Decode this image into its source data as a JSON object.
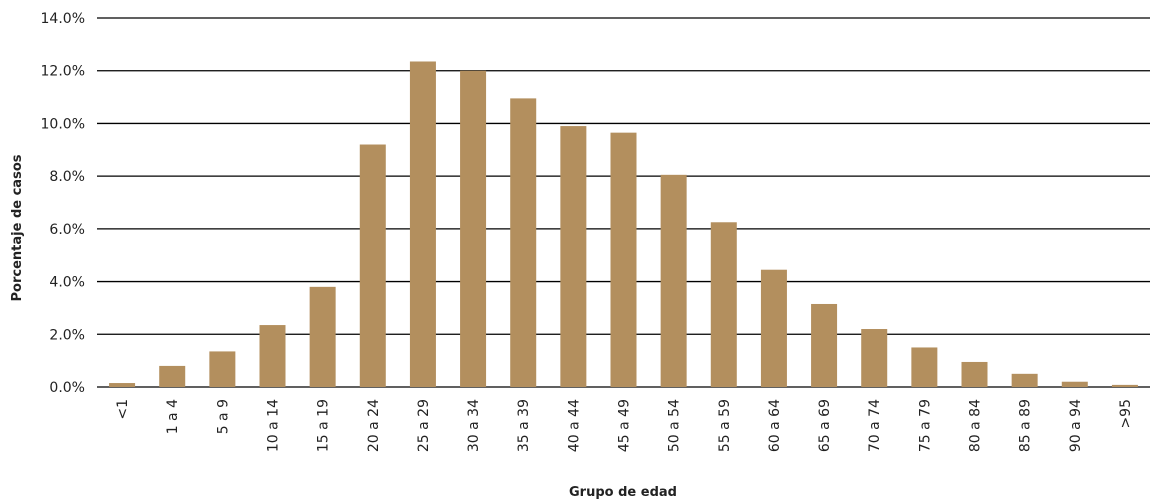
{
  "chart_data": {
    "type": "bar",
    "x_label": "Grupo de edad",
    "y_label": "Porcentaje de casos",
    "categories": [
      "<1",
      "1 a 4",
      "5 a 9",
      "10 a 14",
      "15 a 19",
      "20 a 24",
      "25 a 29",
      "30 a 34",
      "35 a 39",
      "40 a 44",
      "45 a 49",
      "50 a 54",
      "55 a 59",
      "60 a 64",
      "65 a 69",
      "70 a 74",
      "75 a 79",
      "80 a 84",
      "85 a 89",
      "90 a 94",
      ">95"
    ],
    "values": [
      0.15,
      0.8,
      1.35,
      2.35,
      3.8,
      9.2,
      12.35,
      12.0,
      10.95,
      9.9,
      9.65,
      8.05,
      6.25,
      4.45,
      3.15,
      2.2,
      1.5,
      0.95,
      0.5,
      0.2,
      0.08
    ],
    "color": "#b38f5e",
    "ylim": [
      0,
      14
    ],
    "yticks": [
      {
        "value": 0,
        "label": "0.0%"
      },
      {
        "value": 2,
        "label": "2.0%"
      },
      {
        "value": 4,
        "label": "4.0%"
      },
      {
        "value": 6,
        "label": "6.0%"
      },
      {
        "value": 8,
        "label": "8.0%"
      },
      {
        "value": 10,
        "label": "10.0%"
      },
      {
        "value": 12,
        "label": "12.0%"
      },
      {
        "value": 14,
        "label": "14.0%"
      }
    ],
    "grid": true
  }
}
